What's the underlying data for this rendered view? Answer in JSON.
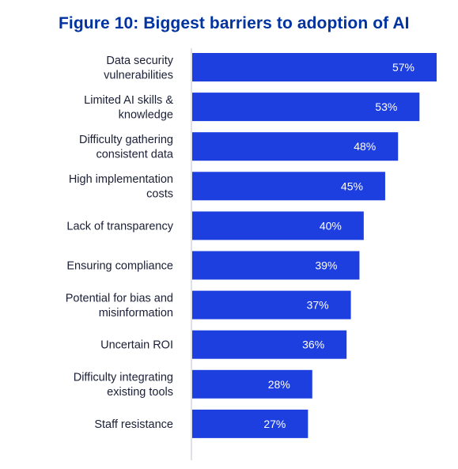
{
  "colors": {
    "title": "#0033a0",
    "bar": "#1e3fe0",
    "axis": "#bfc3cc",
    "label": "#1a1f36",
    "value": "#ffffff"
  },
  "chart_data": {
    "type": "bar",
    "orientation": "horizontal",
    "title": "Figure 10: Biggest barriers to adoption of AI",
    "xlabel": "",
    "ylabel": "",
    "xlim": [
      0,
      57
    ],
    "grid": false,
    "legend": "none",
    "value_suffix": "%",
    "categories": [
      "Data security vulnerabilities",
      "Limited AI skills & knowledge",
      "Difficulty gathering consistent data",
      "High implementation costs",
      "Lack of transparency",
      "Ensuring compliance",
      "Potential for bias and misinformation",
      "Uncertain ROI",
      "Difficulty integrating existing tools",
      "Staff resistance"
    ],
    "label_lines": [
      [
        "Data security",
        "vulnerabilities"
      ],
      [
        "Limited AI skills &",
        "knowledge"
      ],
      [
        "Difficulty gathering",
        "consistent data"
      ],
      [
        "High implementation",
        "costs"
      ],
      [
        "Lack of transparency"
      ],
      [
        "Ensuring compliance"
      ],
      [
        "Potential for bias and",
        "misinformation"
      ],
      [
        "Uncertain ROI"
      ],
      [
        "Difficulty integrating",
        "existing tools"
      ],
      [
        "Staff resistance"
      ]
    ],
    "values": [
      57,
      53,
      48,
      45,
      40,
      39,
      37,
      36,
      28,
      27
    ],
    "value_labels": [
      "57%",
      "53%",
      "48%",
      "45%",
      "40%",
      "39%",
      "37%",
      "36%",
      "28%",
      "27%"
    ]
  }
}
